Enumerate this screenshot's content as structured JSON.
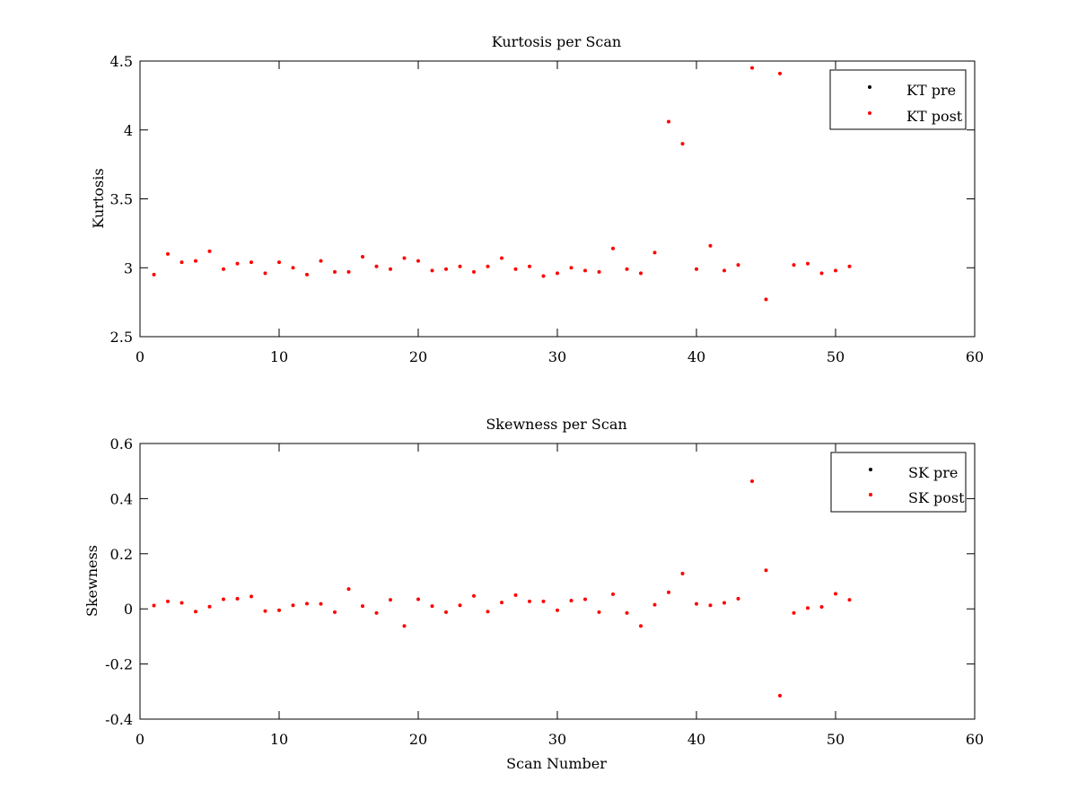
{
  "chart_data": [
    {
      "type": "scatter",
      "title": "Kurtosis per Scan",
      "xlabel": "",
      "ylabel": "Kurtosis",
      "xlim": [
        0,
        60
      ],
      "ylim": [
        2.5,
        4.5
      ],
      "xticks": [
        "0",
        "10",
        "20",
        "30",
        "40",
        "50",
        "60"
      ],
      "yticks": [
        "2.5",
        "3",
        "3.5",
        "4",
        "4.5"
      ],
      "grid": false,
      "legend_position": "top-right",
      "series": [
        {
          "name": "KT pre",
          "color": "#000000",
          "x": [],
          "y": []
        },
        {
          "name": "KT post",
          "color": "#ff0000",
          "x": [
            1,
            2,
            3,
            4,
            5,
            6,
            7,
            8,
            9,
            10,
            11,
            12,
            13,
            14,
            15,
            16,
            17,
            18,
            19,
            20,
            21,
            22,
            23,
            24,
            25,
            26,
            27,
            28,
            29,
            30,
            31,
            32,
            33,
            34,
            35,
            36,
            37,
            38,
            39,
            40,
            41,
            42,
            43,
            44,
            45,
            46,
            47,
            48,
            49,
            50,
            51
          ],
          "y": [
            2.95,
            3.1,
            3.04,
            3.05,
            3.12,
            2.99,
            3.03,
            3.04,
            2.96,
            3.04,
            3.0,
            2.95,
            3.05,
            2.97,
            2.97,
            3.08,
            3.01,
            2.99,
            3.07,
            3.05,
            2.98,
            2.99,
            3.01,
            2.97,
            3.01,
            3.07,
            2.99,
            3.01,
            2.94,
            2.96,
            3.0,
            2.98,
            2.97,
            3.14,
            2.99,
            2.96,
            3.11,
            4.06,
            3.9,
            2.99,
            3.16,
            2.98,
            3.02,
            4.45,
            2.77,
            4.41,
            3.02,
            3.03,
            2.96,
            2.98,
            3.01
          ]
        }
      ]
    },
    {
      "type": "scatter",
      "title": "Skewness per Scan",
      "xlabel": "Scan Number",
      "ylabel": "Skewness",
      "xlim": [
        0,
        60
      ],
      "ylim": [
        -0.4,
        0.6
      ],
      "xticks": [
        "0",
        "10",
        "20",
        "30",
        "40",
        "50",
        "60"
      ],
      "yticks": [
        "-0.4",
        "-0.2",
        "0",
        "0.2",
        "0.4",
        "0.6"
      ],
      "grid": false,
      "legend_position": "top-right",
      "series": [
        {
          "name": "SK pre",
          "color": "#000000",
          "x": [],
          "y": []
        },
        {
          "name": "SK post",
          "color": "#ff0000",
          "x": [
            1,
            2,
            3,
            4,
            5,
            6,
            7,
            8,
            9,
            10,
            11,
            12,
            13,
            14,
            15,
            16,
            17,
            18,
            19,
            20,
            21,
            22,
            23,
            24,
            25,
            26,
            27,
            28,
            29,
            30,
            31,
            32,
            33,
            34,
            35,
            36,
            37,
            38,
            39,
            40,
            41,
            42,
            43,
            44,
            45,
            46,
            47,
            48,
            49,
            50,
            51
          ],
          "y": [
            0.012,
            0.027,
            0.022,
            -0.01,
            0.008,
            0.035,
            0.037,
            0.045,
            -0.008,
            -0.005,
            0.013,
            0.019,
            0.018,
            -0.012,
            0.072,
            0.01,
            -0.015,
            0.033,
            -0.062,
            0.035,
            0.01,
            -0.012,
            0.013,
            0.047,
            -0.01,
            0.023,
            0.05,
            0.027,
            0.027,
            -0.005,
            0.03,
            0.035,
            -0.012,
            0.053,
            -0.015,
            -0.062,
            0.015,
            0.06,
            0.128,
            0.018,
            0.013,
            0.022,
            0.037,
            0.463,
            0.14,
            -0.315,
            -0.015,
            0.003,
            0.007,
            0.055,
            0.033
          ]
        }
      ]
    }
  ]
}
